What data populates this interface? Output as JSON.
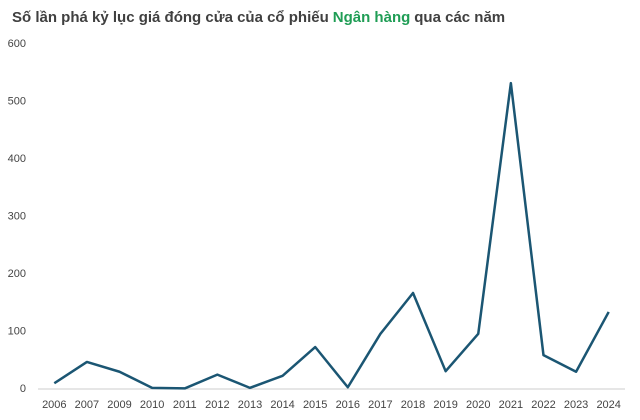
{
  "chart_data": {
    "type": "line",
    "title_parts": [
      "Số lần phá kỷ lục giá đóng cửa của cổ phiếu",
      "Ngân hàng",
      "qua các năm"
    ],
    "categories": [
      "2006",
      "2007",
      "2009",
      "2010",
      "2011",
      "2012",
      "2013",
      "2014",
      "2015",
      "2016",
      "2017",
      "2018",
      "2019",
      "2020",
      "2021",
      "2022",
      "2023",
      "2024"
    ],
    "values": [
      10,
      47,
      30,
      2,
      1,
      25,
      2,
      23,
      73,
      3,
      96,
      167,
      31,
      96,
      532,
      59,
      30,
      134
    ],
    "color": "#1b5673",
    "highlight_color": "#1f9d55",
    "ylim": [
      0,
      600
    ],
    "yticks": [
      0,
      100,
      200,
      300,
      400,
      500,
      600
    ],
    "grid": false
  }
}
